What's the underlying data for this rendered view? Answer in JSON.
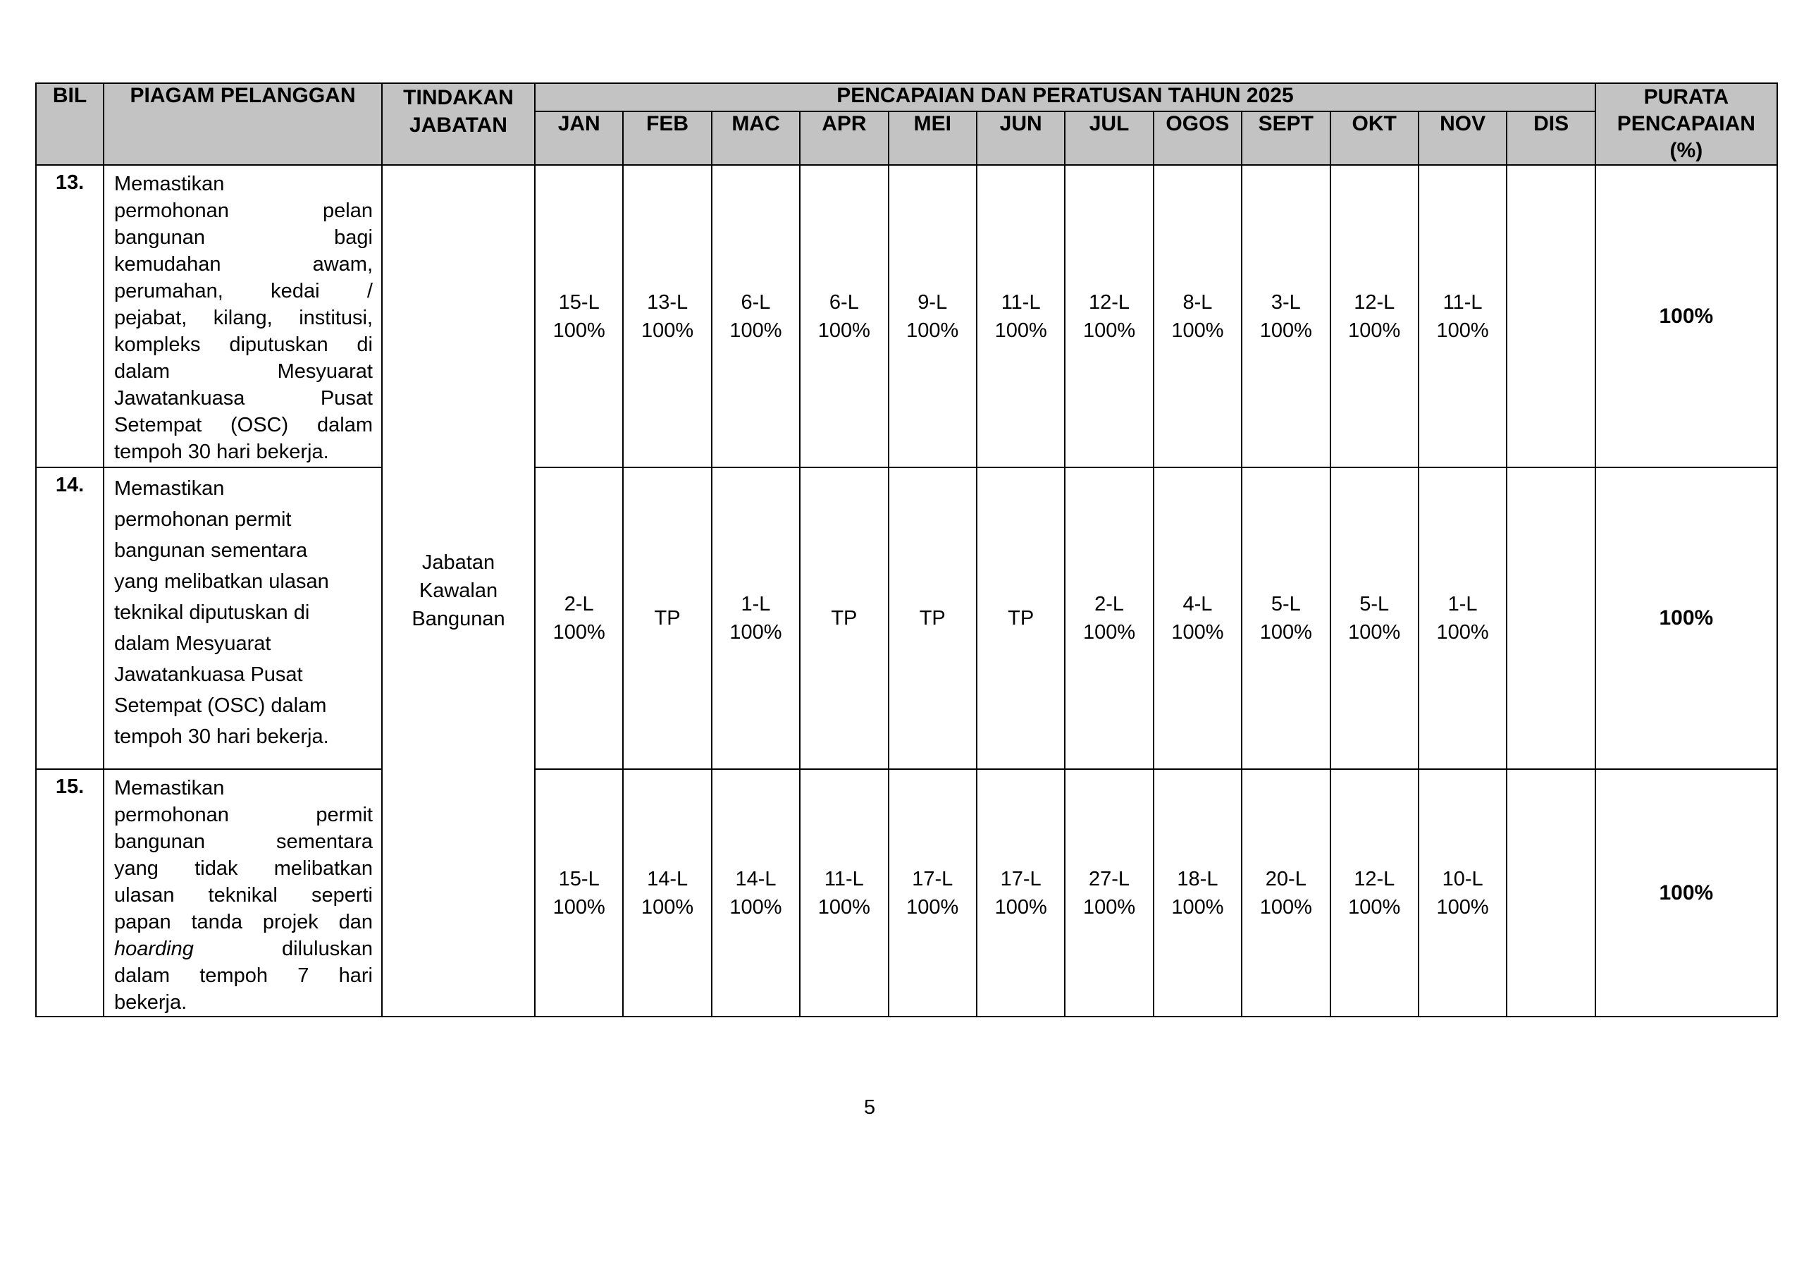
{
  "document": {
    "page_number": "5",
    "colors": {
      "header_bg": "#c3c3c3",
      "border": "#000000",
      "text": "#000000",
      "page_bg": "#ffffff"
    },
    "table": {
      "header": {
        "bil": "BIL",
        "piagam_pelanggan": "PIAGAM PELANGGAN",
        "tindakan_jabatan": "TINDAKAN\nJABATAN",
        "banner": "PENCAPAIAN DAN PERATUSAN TAHUN 2025",
        "months": [
          "JAN",
          "FEB",
          "MAC",
          "APR",
          "MEI",
          "JUN",
          "JUL",
          "OGOS",
          "SEPT",
          "OKT",
          "NOV",
          "DIS"
        ],
        "purata": "PURATA\nPENCAPAIAN\n(%)"
      },
      "tindakan_value": "Jabatan Kawalan Bangunan",
      "rows": [
        {
          "bil": "13.",
          "charter_lines": [
            "Memastikan",
            "permohonan pelan",
            "bangunan bagi",
            "kemudahan awam,",
            "perumahan, kedai /",
            "pejabat, kilang, institusi,",
            "kompleks diputuskan di",
            "dalam Mesyuarat",
            "Jawatankuasa Pusat",
            "Setempat (OSC) dalam",
            "tempoh 30 hari bekerja."
          ],
          "monthly": [
            "15-L\n100%",
            "13-L\n100%",
            "6-L\n100%",
            "6-L\n100%",
            "9-L\n100%",
            "11-L\n100%",
            "12-L\n100%",
            "8-L\n100%",
            "3-L\n100%",
            "12-L\n100%",
            "11-L\n100%",
            ""
          ],
          "purata": "100%"
        },
        {
          "bil": "14.",
          "charter_lines": [
            "Memastikan",
            "permohonan permit",
            "bangunan sementara",
            "yang melibatkan ulasan",
            "teknikal diputuskan di",
            "dalam Mesyuarat",
            "Jawatankuasa Pusat",
            "Setempat (OSC) dalam",
            "tempoh 30 hari bekerja."
          ],
          "monthly": [
            "2-L\n100%",
            "TP",
            "1-L\n100%",
            "TP",
            "TP",
            "TP",
            "2-L\n100%",
            "4-L\n100%",
            "5-L\n100%",
            "5-L\n100%",
            "1-L\n100%",
            ""
          ],
          "purata": "100%"
        },
        {
          "bil": "15.",
          "charter_lines": [
            "Memastikan",
            "permohonan permit",
            "bangunan sementara",
            "yang tidak melibatkan",
            "ulasan teknikal seperti",
            "papan tanda projek dan",
            [
              {
                "t": "hoarding",
                "i": true
              },
              {
                "t": " diluluskan"
              }
            ],
            "dalam tempoh 7 hari",
            "bekerja."
          ],
          "monthly": [
            "15-L\n100%",
            "14-L\n100%",
            "14-L\n100%",
            "11-L\n100%",
            "17-L\n100%",
            "17-L\n100%",
            "27-L\n100%",
            "18-L\n100%",
            "20-L\n100%",
            "12-L\n100%",
            "10-L\n100%",
            ""
          ],
          "purata": "100%"
        }
      ]
    }
  }
}
